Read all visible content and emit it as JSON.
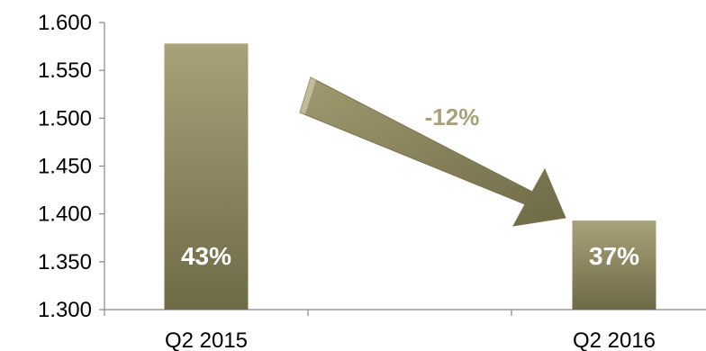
{
  "chart_data": {
    "type": "bar",
    "categories": [
      "Q2 2015",
      "Q2 2016"
    ],
    "values": [
      1.578,
      1.393
    ],
    "bar_labels": [
      "43%",
      "37%"
    ],
    "y_ticks": [
      "1.300",
      "1.350",
      "1.400",
      "1.450",
      "1.500",
      "1.550",
      "1.600"
    ],
    "ylim": [
      1.3,
      1.6
    ],
    "change_label": "-12%",
    "grid": false,
    "colors": {
      "bar_top": "#a8a27a",
      "bar_bottom": "#6e6a46",
      "arrow": "#8a845c",
      "change_label": "#a8a27a",
      "axis": "#888888"
    }
  }
}
